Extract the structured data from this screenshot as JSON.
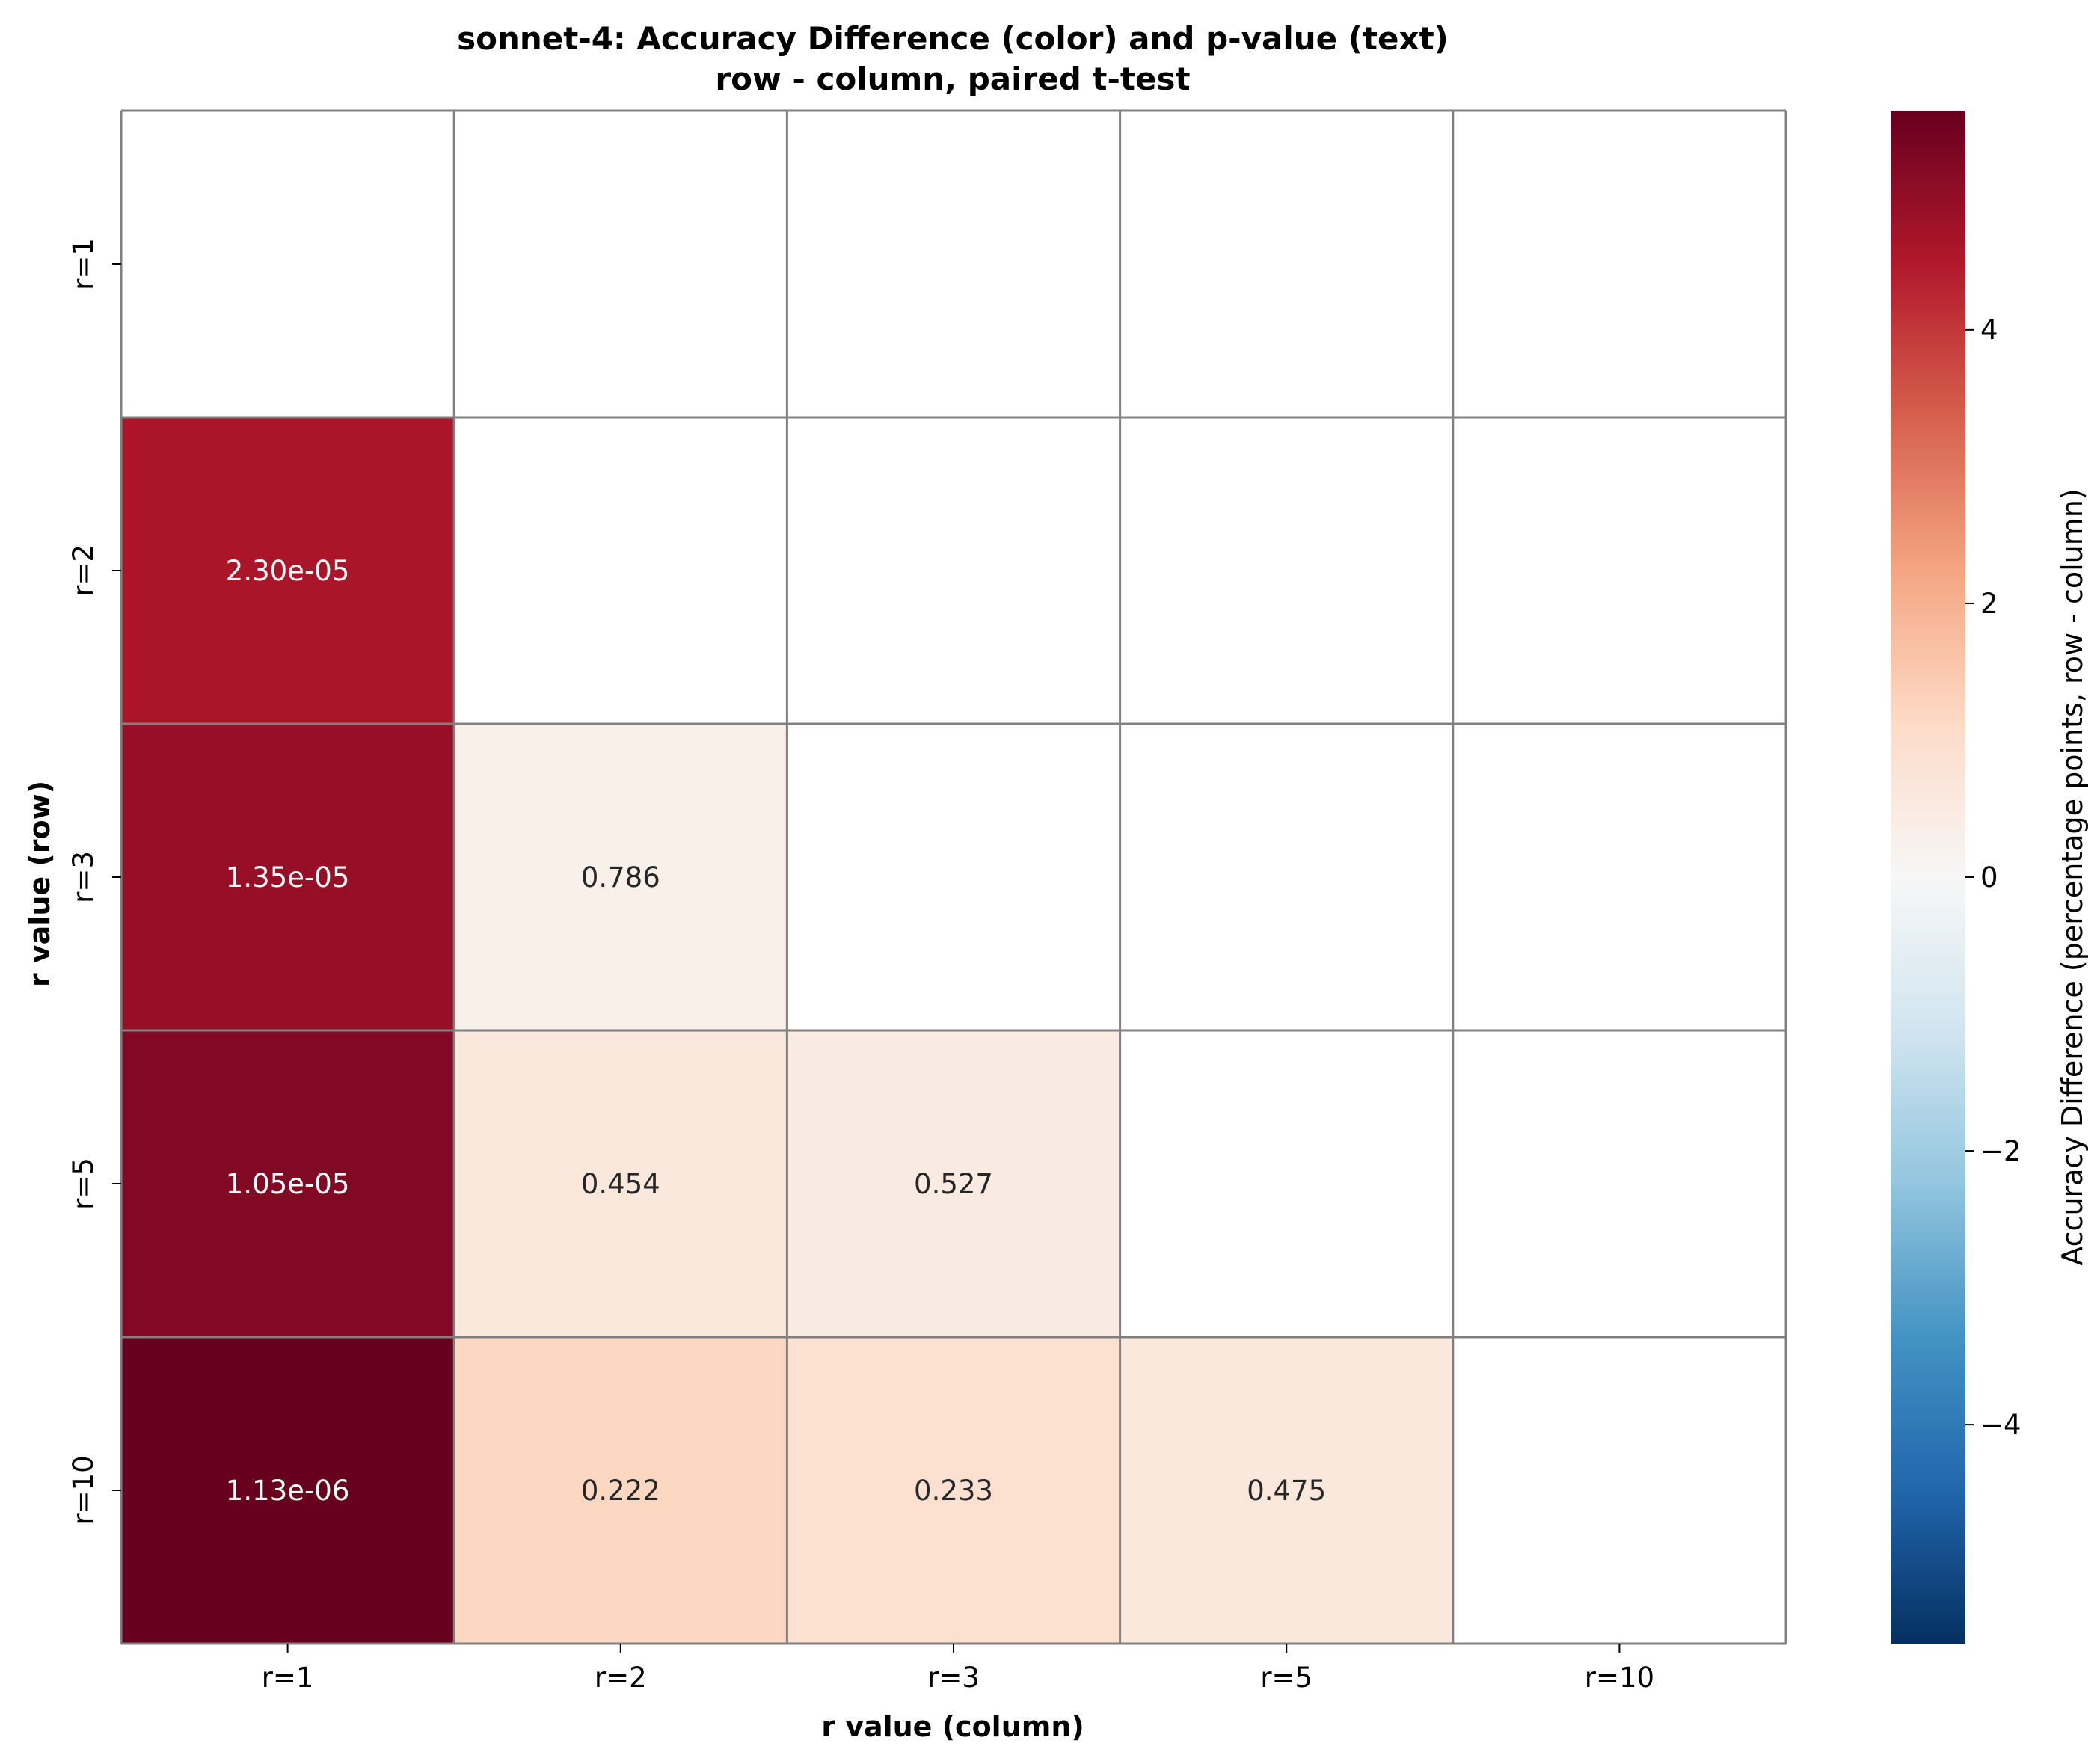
{
  "chart_data": {
    "type": "heatmap",
    "title_line1": "sonnet-4: Accuracy Difference (color) and p-value (text)",
    "title_line2": "row - column, paired t-test",
    "xlabel": "r value (column)",
    "ylabel": "r value (row)",
    "row_labels": [
      "r=1",
      "r=2",
      "r=3",
      "r=5",
      "r=10"
    ],
    "col_labels": [
      "r=1",
      "r=2",
      "r=3",
      "r=5",
      "r=10"
    ],
    "colorbar_label": "Accuracy Difference (percentage points, row - column)",
    "colorbar_range": [
      -5.6,
      5.6
    ],
    "colorbar_ticks": [
      4,
      2,
      0,
      -2,
      -4
    ],
    "colorbar_tick_labels": [
      "4",
      "2",
      "0",
      "−2",
      "−4"
    ],
    "colormap": "RdBu_r",
    "cells": [
      {
        "row": 1,
        "col": 0,
        "value": 4.6,
        "p_text": "2.30e-05"
      },
      {
        "row": 2,
        "col": 0,
        "value": 4.9,
        "p_text": "1.35e-05"
      },
      {
        "row": 2,
        "col": 1,
        "value": 0.3,
        "p_text": "0.786"
      },
      {
        "row": 3,
        "col": 0,
        "value": 5.2,
        "p_text": "1.05e-05"
      },
      {
        "row": 3,
        "col": 1,
        "value": 0.6,
        "p_text": "0.454"
      },
      {
        "row": 3,
        "col": 2,
        "value": 0.5,
        "p_text": "0.527"
      },
      {
        "row": 4,
        "col": 0,
        "value": 5.6,
        "p_text": "1.13e-06"
      },
      {
        "row": 4,
        "col": 1,
        "value": 1.2,
        "p_text": "0.222"
      },
      {
        "row": 4,
        "col": 2,
        "value": 0.9,
        "p_text": "0.233"
      },
      {
        "row": 4,
        "col": 3,
        "value": 0.6,
        "p_text": "0.475"
      }
    ],
    "grid_color": "#808080",
    "masked_color": "#ffffff"
  }
}
